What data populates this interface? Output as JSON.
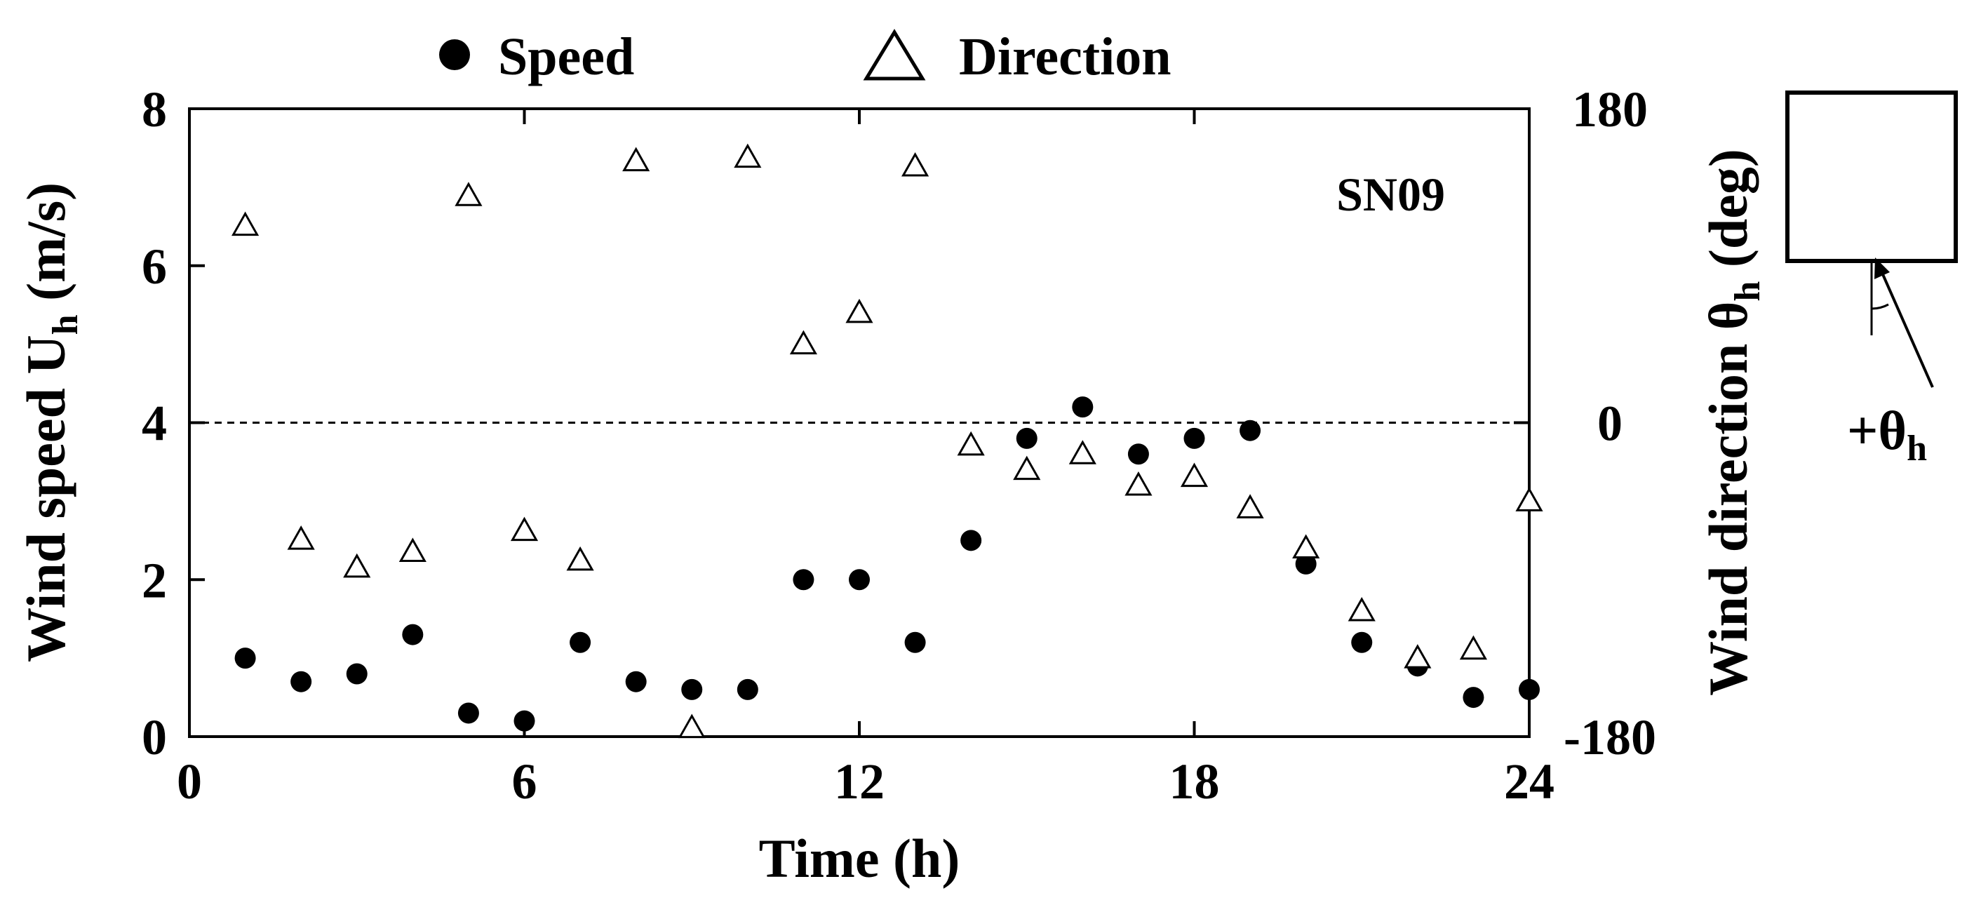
{
  "chart_data": {
    "type": "scatter",
    "site_label": "SN09",
    "x": {
      "label": "Time (h)",
      "range": [
        0,
        24
      ],
      "ticks": [
        "0",
        "6",
        "12",
        "18",
        "24"
      ]
    },
    "y_left": {
      "label_main": "Wind speed U",
      "label_sub": "h",
      "label_unit": " (m/s)",
      "range": [
        0,
        8
      ],
      "ticks": [
        "0",
        "2",
        "4",
        "6",
        "8"
      ]
    },
    "y_right": {
      "label_main": "Wind direction θ",
      "label_sub": "h",
      "label_unit": " (deg)",
      "range": [
        -180,
        180
      ],
      "ticks": [
        "-180",
        "0",
        "180"
      ]
    },
    "reference_line": {
      "axis": "right",
      "value": 0,
      "style": "dashed"
    },
    "legend": [
      {
        "marker": "filled-circle",
        "label": "Speed"
      },
      {
        "marker": "open-triangle",
        "label": "Direction"
      }
    ],
    "series": [
      {
        "name": "Speed",
        "axis": "left",
        "marker": "filled-circle",
        "points": [
          [
            1,
            1.0
          ],
          [
            2,
            0.7
          ],
          [
            3,
            0.8
          ],
          [
            4,
            1.3
          ],
          [
            5,
            0.3
          ],
          [
            6,
            0.2
          ],
          [
            7,
            1.2
          ],
          [
            8,
            0.7
          ],
          [
            9,
            0.6
          ],
          [
            10,
            0.6
          ],
          [
            11,
            2.0
          ],
          [
            12,
            2.0
          ],
          [
            13,
            1.2
          ],
          [
            14,
            2.5
          ],
          [
            15,
            3.8
          ],
          [
            16,
            4.2
          ],
          [
            17,
            3.6
          ],
          [
            18,
            3.8
          ],
          [
            19,
            3.9
          ],
          [
            20,
            2.2
          ],
          [
            21,
            1.2
          ],
          [
            22,
            0.9
          ],
          [
            23,
            0.5
          ],
          [
            24,
            0.6
          ]
        ]
      },
      {
        "name": "Direction",
        "axis": "right",
        "marker": "open-triangle",
        "points": [
          [
            1,
            113
          ],
          [
            2,
            -67
          ],
          [
            3,
            -83
          ],
          [
            4,
            -74
          ],
          [
            5,
            130
          ],
          [
            6,
            -62
          ],
          [
            7,
            -79
          ],
          [
            8,
            150
          ],
          [
            9,
            -175
          ],
          [
            10,
            152
          ],
          [
            11,
            45
          ],
          [
            12,
            63
          ],
          [
            13,
            147
          ],
          [
            14,
            -13
          ],
          [
            15,
            -27
          ],
          [
            16,
            -18
          ],
          [
            17,
            -36
          ],
          [
            18,
            -31
          ],
          [
            19,
            -49
          ],
          [
            20,
            -72
          ],
          [
            21,
            -108
          ],
          [
            22,
            -135
          ],
          [
            23,
            -130
          ],
          [
            24,
            -45
          ]
        ]
      }
    ],
    "inset_diagram": {
      "label_main": "+θ",
      "label_sub": "h"
    }
  }
}
